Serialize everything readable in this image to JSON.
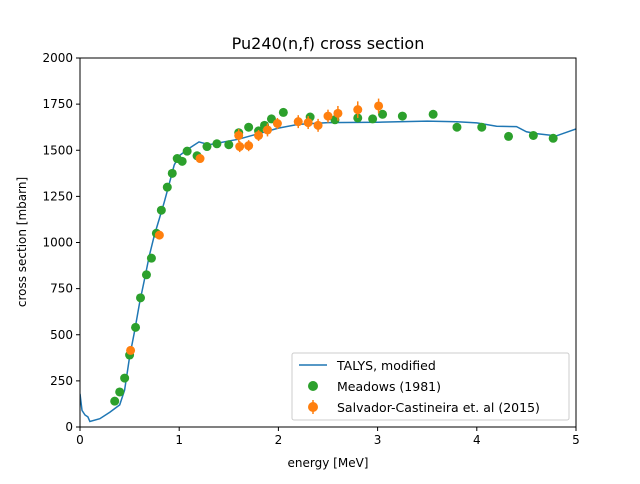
{
  "chart_data": {
    "type": "scatter",
    "title": "Pu240(n,f) cross section",
    "xlabel": "energy [MeV]",
    "ylabel": "cross section [mbarn]",
    "xlim": [
      0,
      5
    ],
    "ylim": [
      0,
      2000
    ],
    "x_ticks": [
      "0",
      "1",
      "2",
      "3",
      "4",
      "5"
    ],
    "y_ticks": [
      "0",
      "250",
      "500",
      "750",
      "1000",
      "1250",
      "1500",
      "1750",
      "2000"
    ],
    "grid": false,
    "legend_position": "lower-right",
    "series": [
      {
        "name": "TALYS, modified",
        "kind": "line",
        "color": "#1f77b4",
        "points": [
          [
            0.0,
            180
          ],
          [
            0.02,
            90
          ],
          [
            0.05,
            65
          ],
          [
            0.08,
            55
          ],
          [
            0.1,
            30
          ],
          [
            0.2,
            45
          ],
          [
            0.3,
            80
          ],
          [
            0.4,
            120
          ],
          [
            0.45,
            200
          ],
          [
            0.5,
            380
          ],
          [
            0.55,
            520
          ],
          [
            0.6,
            670
          ],
          [
            0.65,
            800
          ],
          [
            0.7,
            930
          ],
          [
            0.75,
            1040
          ],
          [
            0.8,
            1130
          ],
          [
            0.85,
            1220
          ],
          [
            0.9,
            1320
          ],
          [
            0.95,
            1420
          ],
          [
            1.0,
            1470
          ],
          [
            1.1,
            1510
          ],
          [
            1.2,
            1545
          ],
          [
            1.3,
            1530
          ],
          [
            1.4,
            1540
          ],
          [
            1.6,
            1560
          ],
          [
            1.8,
            1590
          ],
          [
            2.0,
            1620
          ],
          [
            2.2,
            1640
          ],
          [
            2.5,
            1650
          ],
          [
            3.0,
            1652
          ],
          [
            3.5,
            1658
          ],
          [
            3.8,
            1655
          ],
          [
            4.0,
            1648
          ],
          [
            4.2,
            1630
          ],
          [
            4.4,
            1628
          ],
          [
            4.5,
            1600
          ],
          [
            4.6,
            1590
          ],
          [
            4.8,
            1578
          ],
          [
            5.0,
            1615
          ]
        ]
      },
      {
        "name": "Meadows (1981)",
        "kind": "scatter",
        "color": "#2ca02c",
        "points": [
          [
            0.35,
            140
          ],
          [
            0.4,
            190
          ],
          [
            0.45,
            265
          ],
          [
            0.5,
            390
          ],
          [
            0.56,
            540
          ],
          [
            0.61,
            700
          ],
          [
            0.67,
            825
          ],
          [
            0.72,
            915
          ],
          [
            0.77,
            1050
          ],
          [
            0.82,
            1175
          ],
          [
            0.88,
            1300
          ],
          [
            0.93,
            1375
          ],
          [
            0.98,
            1455
          ],
          [
            1.03,
            1440
          ],
          [
            1.08,
            1495
          ],
          [
            1.18,
            1470
          ],
          [
            1.28,
            1520
          ],
          [
            1.38,
            1535
          ],
          [
            1.5,
            1530
          ],
          [
            1.6,
            1595
          ],
          [
            1.7,
            1625
          ],
          [
            1.8,
            1605
          ],
          [
            1.86,
            1635
          ],
          [
            1.93,
            1670
          ],
          [
            2.05,
            1705
          ],
          [
            2.32,
            1680
          ],
          [
            2.57,
            1665
          ],
          [
            2.8,
            1675
          ],
          [
            2.95,
            1670
          ],
          [
            3.05,
            1695
          ],
          [
            3.25,
            1685
          ],
          [
            3.56,
            1695
          ],
          [
            3.8,
            1625
          ],
          [
            4.05,
            1625
          ],
          [
            4.32,
            1575
          ],
          [
            4.57,
            1580
          ],
          [
            4.77,
            1565
          ]
        ]
      },
      {
        "name": "Salvador-Castineira et. al (2015)",
        "kind": "errorbar",
        "color": "#ff7f0e",
        "points": [
          [
            0.51,
            415,
            15
          ],
          [
            0.8,
            1040,
            15
          ],
          [
            1.21,
            1455,
            20
          ],
          [
            1.6,
            1580,
            35
          ],
          [
            1.61,
            1520,
            30
          ],
          [
            1.7,
            1525,
            30
          ],
          [
            1.8,
            1580,
            30
          ],
          [
            1.89,
            1610,
            35
          ],
          [
            1.99,
            1645,
            30
          ],
          [
            2.2,
            1655,
            35
          ],
          [
            2.3,
            1650,
            35
          ],
          [
            2.4,
            1635,
            35
          ],
          [
            2.5,
            1685,
            35
          ],
          [
            2.6,
            1700,
            40
          ],
          [
            2.8,
            1720,
            45
          ],
          [
            3.01,
            1740,
            40
          ]
        ]
      }
    ]
  }
}
